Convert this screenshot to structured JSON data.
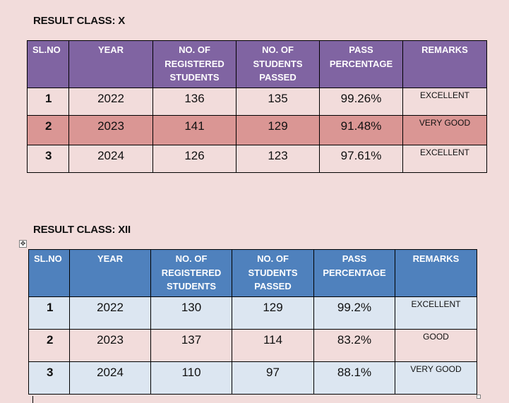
{
  "class_x": {
    "title": "RESULT CLASS: X",
    "headers": {
      "sl": "SL.NO",
      "year": "YEAR",
      "registered": [
        "NO. OF",
        "REGISTERED",
        "STUDENTS"
      ],
      "passed": [
        "NO. OF",
        "STUDENTS",
        "PASSED"
      ],
      "percentage": [
        "PASS",
        "PERCENTAGE"
      ],
      "remarks": "REMARKS"
    },
    "rows": [
      {
        "sl": "1",
        "year": "2022",
        "registered": "136",
        "passed": "135",
        "percentage": "99.26%",
        "remarks": "EXCELLENT"
      },
      {
        "sl": "2",
        "year": "2023",
        "registered": "141",
        "passed": "129",
        "percentage": "91.48%",
        "remarks": "VERY GOOD"
      },
      {
        "sl": "3",
        "year": "2024",
        "registered": "126",
        "passed": "123",
        "percentage": "97.61%",
        "remarks": "EXCELLENT"
      }
    ]
  },
  "class_xii": {
    "title": "RESULT CLASS: XII",
    "headers": {
      "sl": "SL.NO",
      "year": "YEAR",
      "registered": [
        "NO. OF",
        "REGISTERED",
        "STUDENTS"
      ],
      "passed": [
        "NO. OF",
        "STUDENTS",
        "PASSED"
      ],
      "percentage": [
        "PASS",
        "PERCENTAGE"
      ],
      "remarks": "REMARKS"
    },
    "rows": [
      {
        "sl": "1",
        "year": "2022",
        "registered": "130",
        "passed": "129",
        "percentage": "99.2%",
        "remarks": "EXCELLENT"
      },
      {
        "sl": "2",
        "year": "2023",
        "registered": "137",
        "passed": "114",
        "percentage": "83.2%",
        "remarks": "GOOD"
      },
      {
        "sl": "3",
        "year": "2024",
        "registered": "110",
        "passed": "97",
        "percentage": "88.1%",
        "remarks": "VERY GOOD"
      }
    ]
  },
  "colors": {
    "page_background": "#f2dcdb",
    "class_x_header": "#8064a2",
    "class_x_highlight_row": "#da9694",
    "class_xii_header": "#4f81bd",
    "class_xii_alt_row": "#dce6f1"
  },
  "icons": {
    "table_move_handle": "move-arrows-icon",
    "table_resize_handle": "resize-handle-icon"
  }
}
